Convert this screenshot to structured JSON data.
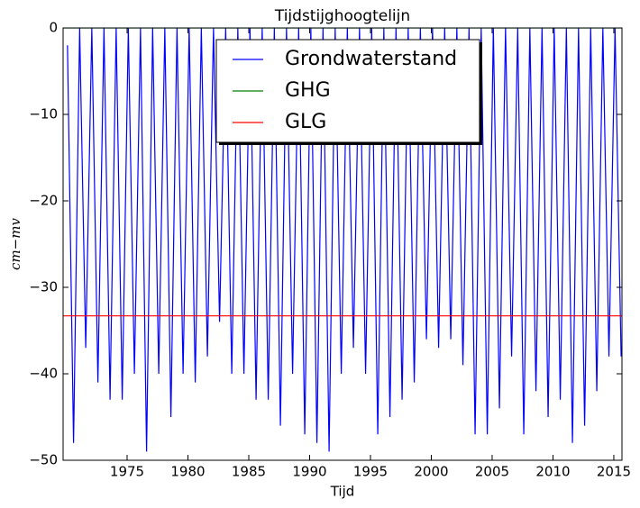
{
  "chart_data": {
    "type": "line",
    "title": "Tijdstijghoogtelijn",
    "x_label": "Tijd",
    "y_label": "cm−mv",
    "xlim": [
      1969.74,
      2015.67
    ],
    "xticks": [
      1975,
      1980,
      1985,
      1990,
      1995,
      2000,
      2005,
      2010,
      2015
    ],
    "ylim": [
      -50,
      0
    ],
    "yticks": [
      {
        "value": -50,
        "label": "−50"
      },
      {
        "value": -40,
        "label": "−40"
      },
      {
        "value": -30,
        "label": "−30"
      },
      {
        "value": -20,
        "label": "−20"
      },
      {
        "value": -10,
        "label": "−10"
      },
      0
    ],
    "legend": "upper center",
    "series": [
      {
        "name": "Grondwaterstand",
        "color": "#0000ff",
        "x": [
          1970.1,
          1970.6,
          1971.1,
          1971.6,
          1972.1,
          1972.6,
          1973.1,
          1973.6,
          1974.1,
          1974.6,
          1975.1,
          1975.6,
          1976.1,
          1976.6,
          1977.1,
          1977.6,
          1978.1,
          1978.6,
          1979.1,
          1979.6,
          1980.1,
          1980.6,
          1981.1,
          1981.6,
          1982.1,
          1982.6,
          1983.1,
          1983.6,
          1984.1,
          1984.6,
          1985.1,
          1985.6,
          1986.1,
          1986.6,
          1987.1,
          1987.6,
          1988.1,
          1988.6,
          1989.1,
          1989.6,
          1990.1,
          1990.6,
          1991.1,
          1991.6,
          1992.1,
          1992.6,
          1993.1,
          1993.6,
          1994.1,
          1994.6,
          1995.1,
          1995.6,
          1996.1,
          1996.6,
          1997.1,
          1997.6,
          1998.1,
          1998.6,
          1999.1,
          1999.6,
          2000.1,
          2000.6,
          2001.1,
          2001.6,
          2002.1,
          2002.6,
          2003.1,
          2003.6,
          2004.1,
          2004.6,
          2005.1,
          2005.6,
          2006.1,
          2006.6,
          2007.1,
          2007.6,
          2008.1,
          2008.6,
          2009.1,
          2009.6,
          2010.1,
          2010.6,
          2011.1,
          2011.6,
          2012.1,
          2012.6,
          2013.1,
          2013.6,
          2014.1,
          2014.6,
          2015.1,
          2015.6
        ],
        "values": [
          -2,
          -48,
          0,
          -37,
          0,
          -41,
          0,
          -43,
          0,
          -43,
          0,
          -40,
          0,
          -49,
          0,
          -40,
          0,
          -45,
          0,
          -40,
          0,
          -41,
          0,
          -38,
          0,
          -34,
          0,
          -40,
          0,
          -40,
          0,
          -43,
          0,
          -43,
          0,
          -46,
          0,
          -40,
          0,
          -47,
          0,
          -48,
          0,
          -49,
          0,
          -40,
          0,
          -37,
          0,
          -40,
          0,
          -47,
          0,
          -45,
          0,
          -43,
          0,
          -41,
          0,
          -36,
          0,
          -37,
          0,
          -36,
          0,
          -39,
          0,
          -47,
          0,
          -47,
          0,
          -44,
          0,
          -38,
          0,
          -47,
          0,
          -42,
          0,
          -45,
          0,
          -43,
          0,
          -48,
          0,
          -46,
          0,
          -42,
          0,
          -38,
          0,
          -38
        ]
      },
      {
        "name": "GHG",
        "color": "#008000",
        "x": [
          1969.74,
          2015.67
        ],
        "values": [
          0,
          0
        ]
      },
      {
        "name": "GLG",
        "color": "#ff0000",
        "x": [
          1969.74,
          2015.67
        ],
        "values": [
          -33.3,
          -33.3
        ]
      }
    ]
  }
}
